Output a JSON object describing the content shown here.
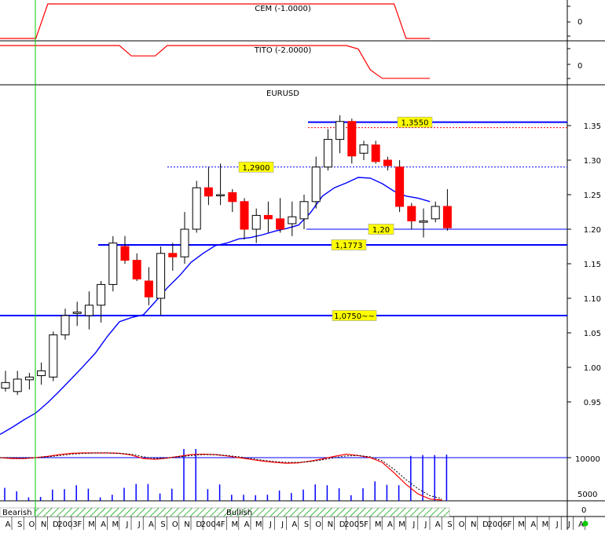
{
  "panels": {
    "cem": {
      "title": "CEM (-1.0000)",
      "tick": "0"
    },
    "tito": {
      "title": "TITO (-2.0000)",
      "tick": "0"
    },
    "main": {
      "title": "EURUSD"
    },
    "volume": {
      "ticks": [
        "10000",
        "5000",
        "0"
      ]
    },
    "band": {
      "bearish_label": "Bearish",
      "bullish_label": "Bullish"
    }
  },
  "colors": {
    "up_candle": "#ffffff",
    "down_candle": "#ff0000",
    "ma_line": "#0000ff",
    "levels": "#0000ff",
    "indicator_line": "#ff0000",
    "label_bg": "#ffff00",
    "marker_line": "#00cc00",
    "band_hatch": "#00aa00"
  },
  "chart_data": [
    {
      "type": "line",
      "title": "CEM (-1.0000)",
      "y_tick_labels": [
        "0"
      ],
      "series": [
        {
          "values": [
            0,
            0,
            0,
            0,
            1,
            1,
            1,
            1,
            1,
            1,
            1,
            1,
            1,
            1,
            1,
            1,
            1,
            1,
            1,
            1,
            1,
            1,
            1,
            1,
            1,
            1,
            1,
            1,
            1,
            1,
            1,
            1,
            1,
            1,
            0,
            0,
            0
          ]
        }
      ]
    },
    {
      "type": "line",
      "title": "TITO (-2.0000)",
      "y_tick_labels": [
        "0"
      ],
      "series": [
        {
          "values": [
            1,
            1,
            1,
            1,
            1,
            1,
            1,
            1,
            1,
            1,
            1,
            0.7,
            0.7,
            0.7,
            1,
            1,
            1,
            1,
            1,
            1,
            1,
            1,
            1,
            1,
            1,
            1,
            1,
            1,
            1,
            1,
            0.9,
            0.3,
            0.05,
            0.05,
            0.05,
            0.05,
            0.05
          ]
        }
      ]
    },
    {
      "type": "candlestick",
      "title": "EURUSD",
      "ylim": [
        0.9,
        1.4
      ],
      "y_tick_labels": [
        "1.35",
        "1.30",
        "1.25",
        "1.20",
        "1.15",
        "1.10",
        "1.05",
        "1.00",
        "0.95"
      ],
      "candles": [
        {
          "o": 0.97,
          "h": 0.995,
          "l": 0.965,
          "c": 0.978
        },
        {
          "o": 0.965,
          "h": 0.995,
          "l": 0.96,
          "c": 0.983
        },
        {
          "o": 0.982,
          "h": 0.992,
          "l": 0.968,
          "c": 0.986
        },
        {
          "o": 0.988,
          "h": 1.007,
          "l": 0.975,
          "c": 0.995
        },
        {
          "o": 0.986,
          "h": 1.052,
          "l": 0.98,
          "c": 1.047
        },
        {
          "o": 1.047,
          "h": 1.085,
          "l": 1.04,
          "c": 1.075
        },
        {
          "o": 1.078,
          "h": 1.095,
          "l": 1.06,
          "c": 1.08
        },
        {
          "o": 1.075,
          "h": 1.11,
          "l": 1.055,
          "c": 1.09
        },
        {
          "o": 1.09,
          "h": 1.125,
          "l": 1.065,
          "c": 1.12
        },
        {
          "o": 1.12,
          "h": 1.19,
          "l": 1.11,
          "c": 1.18
        },
        {
          "o": 1.175,
          "h": 1.19,
          "l": 1.15,
          "c": 1.155
        },
        {
          "o": 1.155,
          "h": 1.165,
          "l": 1.125,
          "c": 1.128
        },
        {
          "o": 1.125,
          "h": 1.145,
          "l": 1.09,
          "c": 1.102
        },
        {
          "o": 1.1,
          "h": 1.175,
          "l": 1.075,
          "c": 1.165
        },
        {
          "o": 1.165,
          "h": 1.18,
          "l": 1.14,
          "c": 1.16
        },
        {
          "o": 1.16,
          "h": 1.225,
          "l": 1.15,
          "c": 1.2
        },
        {
          "o": 1.2,
          "h": 1.27,
          "l": 1.195,
          "c": 1.26
        },
        {
          "o": 1.26,
          "h": 1.29,
          "l": 1.235,
          "c": 1.248
        },
        {
          "o": 1.25,
          "h": 1.295,
          "l": 1.235,
          "c": 1.25
        },
        {
          "o": 1.253,
          "h": 1.258,
          "l": 1.225,
          "c": 1.24
        },
        {
          "o": 1.24,
          "h": 1.245,
          "l": 1.185,
          "c": 1.2
        },
        {
          "o": 1.2,
          "h": 1.23,
          "l": 1.18,
          "c": 1.22
        },
        {
          "o": 1.22,
          "h": 1.24,
          "l": 1.195,
          "c": 1.215
        },
        {
          "o": 1.215,
          "h": 1.245,
          "l": 1.195,
          "c": 1.2
        },
        {
          "o": 1.208,
          "h": 1.24,
          "l": 1.19,
          "c": 1.218
        },
        {
          "o": 1.215,
          "h": 1.25,
          "l": 1.2,
          "c": 1.24
        },
        {
          "o": 1.24,
          "h": 1.305,
          "l": 1.23,
          "c": 1.29
        },
        {
          "o": 1.29,
          "h": 1.345,
          "l": 1.285,
          "c": 1.33
        },
        {
          "o": 1.33,
          "h": 1.365,
          "l": 1.31,
          "c": 1.356
        },
        {
          "o": 1.356,
          "h": 1.36,
          "l": 1.295,
          "c": 1.306
        },
        {
          "o": 1.31,
          "h": 1.328,
          "l": 1.3,
          "c": 1.322
        },
        {
          "o": 1.322,
          "h": 1.328,
          "l": 1.295,
          "c": 1.298
        },
        {
          "o": 1.3,
          "h": 1.305,
          "l": 1.285,
          "c": 1.292
        },
        {
          "o": 1.29,
          "h": 1.3,
          "l": 1.225,
          "c": 1.233
        },
        {
          "o": 1.233,
          "h": 1.238,
          "l": 1.2,
          "c": 1.212
        },
        {
          "o": 1.21,
          "h": 1.23,
          "l": 1.188,
          "c": 1.212
        },
        {
          "o": 1.215,
          "h": 1.24,
          "l": 1.21,
          "c": 1.233
        },
        {
          "o": 1.233,
          "h": 1.258,
          "l": 1.198,
          "c": 1.202
        }
      ],
      "moving_average": [
        0.903,
        0.913,
        0.924,
        0.934,
        0.949,
        0.966,
        0.984,
        1.002,
        1.021,
        1.045,
        1.066,
        1.072,
        1.076,
        1.095,
        1.115,
        1.132,
        1.152,
        1.165,
        1.176,
        1.18,
        1.186,
        1.188,
        1.192,
        1.197,
        1.201,
        1.206,
        1.224,
        1.248,
        1.26,
        1.267,
        1.275,
        1.274,
        1.266,
        1.255,
        1.248,
        1.245,
        1.24
      ],
      "levels": [
        {
          "value": 1.355,
          "label": "1,3550",
          "style": "solid-thick"
        },
        {
          "value": 1.347,
          "label": "",
          "style": "dotted-red"
        },
        {
          "value": 1.29,
          "label": "1,2900",
          "style": "dotted"
        },
        {
          "value": 1.2,
          "label": "1,20",
          "style": "solid-thin"
        },
        {
          "value": 1.1773,
          "label": "1,1773",
          "style": "solid-thick"
        },
        {
          "value": 1.075,
          "label": "1,0750~~",
          "style": "solid-thick"
        }
      ]
    },
    {
      "type": "line",
      "title": "",
      "ylim": [
        0,
        12000
      ],
      "y_tick_labels": [
        "10000",
        "5000",
        "0"
      ],
      "series": [
        {
          "values": [
            10000,
            9800,
            9800,
            10000,
            10300,
            10700,
            11000,
            11100,
            11100,
            11100,
            11000,
            10600,
            9800,
            9600,
            9900,
            10300,
            10700,
            10800,
            10700,
            10400,
            10000,
            9600,
            9200,
            8900,
            8700,
            8800,
            9200,
            9700,
            10300,
            10800,
            10500,
            10000,
            8900,
            6500,
            3800,
            1600,
            400,
            200
          ]
        },
        {
          "values": [
            10000,
            10000,
            9900,
            10000,
            10200,
            10500,
            10800,
            11000,
            11100,
            11100,
            11000,
            10800,
            10200,
            9800,
            9900,
            10200,
            10500,
            10700,
            10700,
            10500,
            10200,
            9800,
            9400,
            9100,
            8900,
            8900,
            9100,
            9500,
            10000,
            10400,
            10500,
            10200,
            9300,
            7300,
            4900,
            2800,
            1200,
            500
          ]
        }
      ],
      "bars": [
        3000,
        2200,
        800,
        900,
        2600,
        2700,
        3600,
        2800,
        800,
        1400,
        3000,
        3900,
        3900,
        1700,
        2800,
        12000,
        12000,
        2700,
        3800,
        1400,
        1400,
        1300,
        1400,
        2400,
        1800,
        2600,
        3800,
        3600,
        2900,
        1300,
        2900,
        4500,
        3700,
        3600,
        10400,
        10600,
        10600,
        10700
      ]
    }
  ],
  "x_axis": {
    "labels": [
      "A",
      "S",
      "O",
      "N",
      "D",
      "2003",
      "F",
      "M",
      "A",
      "M",
      "J",
      "J",
      "A",
      "S",
      "O",
      "N",
      "D",
      "2004",
      "F",
      "M",
      "A",
      "M",
      "J",
      "J",
      "A",
      "S",
      "O",
      "N",
      "D",
      "2005",
      "F",
      "M",
      "A",
      "M",
      "J",
      "J",
      "A",
      "S",
      "O",
      "N",
      "D",
      "2006",
      "F",
      "M",
      "A",
      "M",
      "J",
      "J",
      "A"
    ]
  }
}
